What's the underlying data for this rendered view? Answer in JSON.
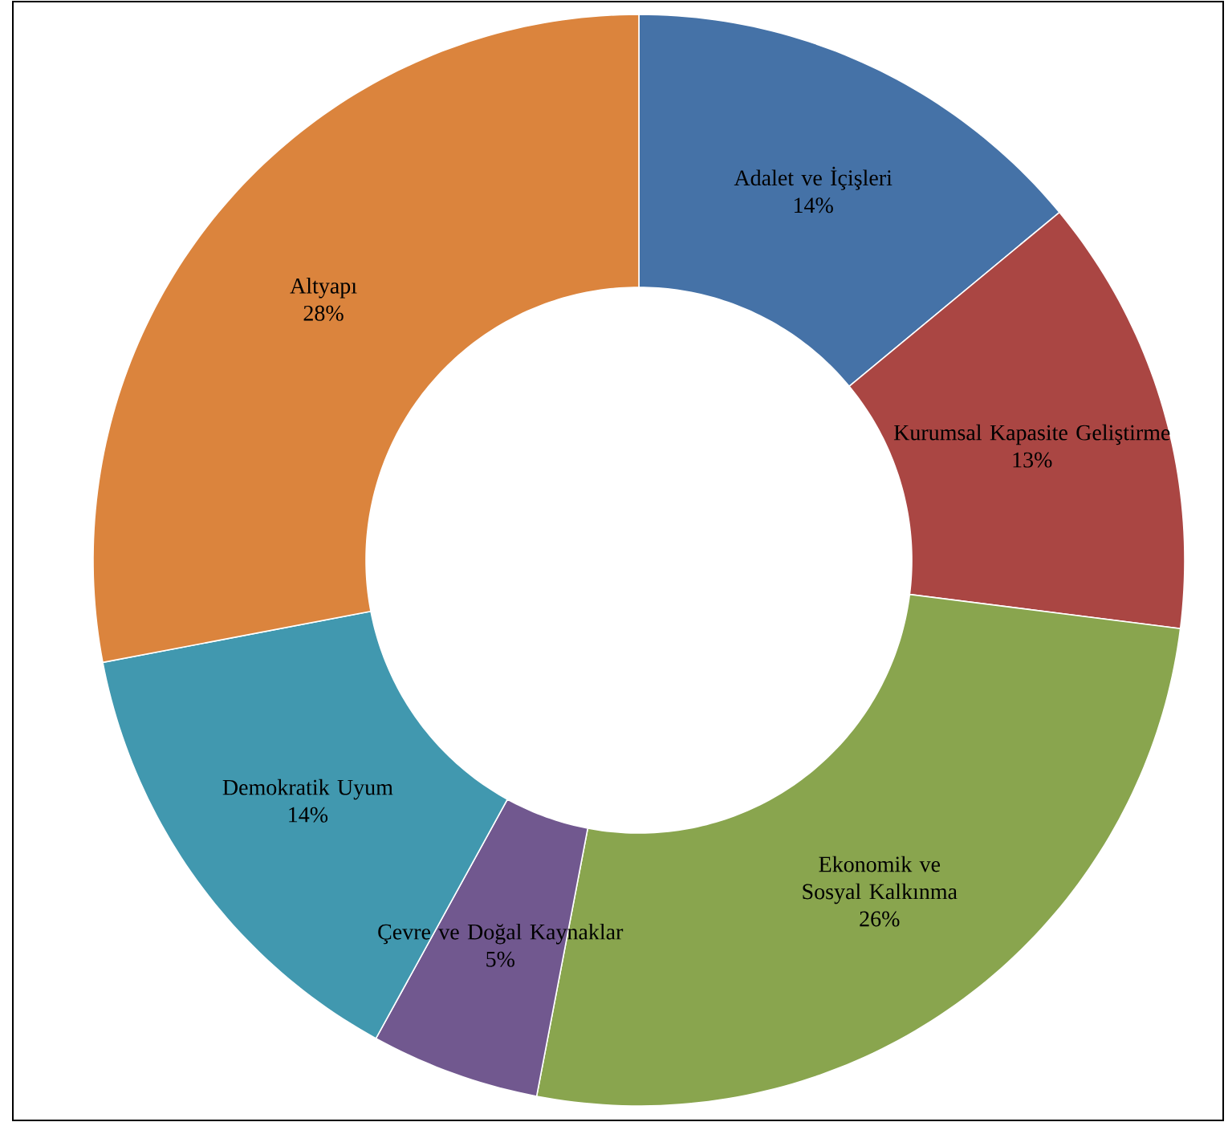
{
  "chart_data": {
    "type": "donut",
    "categories": [
      "Adalet ve İçişleri",
      "Kurumsal Kapasite Geliştirme",
      "Ekonomik ve Sosyal Kalkınma",
      "Çevre ve Doğal Kaynaklar",
      "Demokratik Uyum",
      "Altyapı"
    ],
    "values": [
      14,
      13,
      26,
      5,
      14,
      28
    ],
    "value_labels": [
      "14%",
      "13%",
      "26%",
      "5%",
      "14%",
      "28%"
    ],
    "colors": [
      "#4572a7",
      "#aa4643",
      "#89a54e",
      "#71588f",
      "#4198af",
      "#db843d"
    ]
  }
}
